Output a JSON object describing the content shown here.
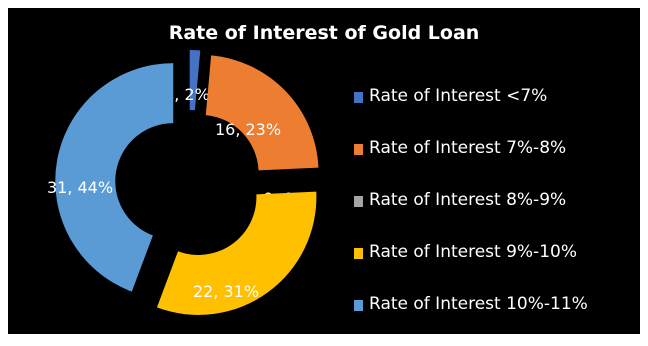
{
  "chart_data": {
    "type": "pie",
    "variant": "exploded-doughnut",
    "title": "Rate of Interest of Gold Loan",
    "series": [
      {
        "name": "Rate of Interest <7%",
        "value": 1,
        "percent": "2%",
        "label": "1, 2%",
        "color": "#4472C4"
      },
      {
        "name": "Rate of Interest 7%-8%",
        "value": 16,
        "percent": "23%",
        "label": "16, 23%",
        "color": "#ED7D31"
      },
      {
        "name": "Rate of Interest 8%-9%",
        "value": 0,
        "percent": "0%",
        "label": "0, 0%",
        "color": "#A5A5A5"
      },
      {
        "name": "Rate of Interest 9%-10%",
        "value": 22,
        "percent": "31%",
        "label": "22, 31%",
        "color": "#FFC000"
      },
      {
        "name": "Rate of Interest 10%-11%",
        "value": 31,
        "percent": "44%",
        "label": "31, 44%",
        "color": "#5B9BD5"
      }
    ],
    "legend_position": "right",
    "background": "#000000"
  }
}
